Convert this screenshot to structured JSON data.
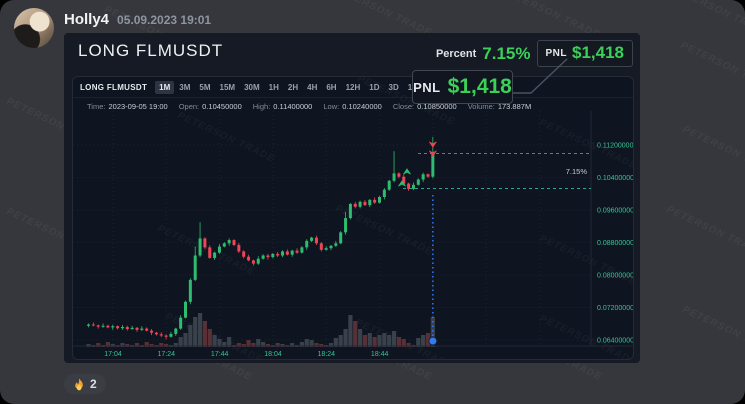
{
  "header": {
    "username": "Holly4",
    "timestamp": "05.09.2023 19:01"
  },
  "watermark": {
    "text": "PETERSON TRADE"
  },
  "embed": {
    "title": "LONG FLMUSDT",
    "percent_label": "Percent",
    "percent_value": "7.15%",
    "pnl_label": "PNL",
    "pnl_value": "$1,418",
    "callout": {
      "label": "PNL",
      "value": "$1,418"
    }
  },
  "toolbar": {
    "symbol": "LONG FLMUSDT",
    "timeframes": [
      "1M",
      "3M",
      "5M",
      "15M",
      "30M",
      "1H",
      "2H",
      "4H",
      "6H",
      "12H",
      "1D",
      "3D",
      "1W",
      "1M"
    ],
    "active_index": 0
  },
  "info": [
    {
      "label": "Time:",
      "value": "2023-09-05 19:00"
    },
    {
      "label": "Open:",
      "value": "0.10450000"
    },
    {
      "label": "High:",
      "value": "0.11400000"
    },
    {
      "label": "Low:",
      "value": "0.10240000"
    },
    {
      "label": "Close:",
      "value": "0.10850000"
    },
    {
      "label": "Volume:",
      "value": "173.887M"
    }
  ],
  "reaction": {
    "icon": "flame-icon",
    "count": "2"
  },
  "chart_data": {
    "type": "candlestick",
    "title": "LONG FLMUSDT 1M",
    "x_ticks": [
      "17:04",
      "17:24",
      "17:44",
      "18:04",
      "18:24",
      "18:44"
    ],
    "y_ticks": [
      "0.11200000",
      "0.10400000",
      "0.09600000",
      "0.08800000",
      "0.08000000",
      "0.07200000",
      "0.06400000"
    ],
    "y_range_top": 0.1199,
    "y_range_bottom": 0.0625,
    "grid": true,
    "price_unit": 0.0001,
    "open_first": 675,
    "closes": [
      678,
      676,
      673,
      675,
      671,
      674,
      669,
      672,
      667,
      670,
      665,
      668,
      663,
      658,
      654,
      651,
      648,
      655,
      668,
      695,
      734,
      788,
      848,
      890,
      868,
      842,
      855,
      870,
      878,
      886,
      874,
      858,
      845,
      836,
      828,
      840,
      848,
      844,
      852,
      848,
      858,
      850,
      860,
      855,
      868,
      884,
      892,
      878,
      862,
      866,
      872,
      878,
      905,
      940,
      975,
      968,
      980,
      972,
      985,
      978,
      992,
      1010,
      1032,
      1050,
      1042,
      1025,
      1012,
      1022,
      1035,
      1048,
      1042,
      1098
    ],
    "wick_up_pattern": [
      3,
      5,
      2,
      6,
      3,
      4,
      2,
      5
    ],
    "wick_up_overrides": {
      "22": 22,
      "23": 40,
      "53": 15,
      "63": 55,
      "71": 42
    },
    "wick_dn_pattern": [
      4,
      2,
      5,
      3,
      2,
      6,
      3,
      4
    ],
    "wick_dn_overrides": {
      "16": 6
    },
    "volume_pattern": [
      3,
      2,
      4,
      2,
      5,
      3,
      2,
      4
    ],
    "volume_overrides": {
      "19": 10,
      "20": 14,
      "21": 22,
      "22": 30,
      "23": 34,
      "24": 26,
      "25": 18,
      "26": 12,
      "27": 8,
      "29": 10,
      "33": 7,
      "35": 8,
      "45": 8,
      "46": 7,
      "51": 9,
      "52": 12,
      "53": 18,
      "54": 32,
      "55": 26,
      "56": 18,
      "57": 12,
      "58": 14,
      "59": 10,
      "60": 12,
      "61": 14,
      "62": 12,
      "63": 16,
      "64": 10,
      "65": 8,
      "68": 9,
      "69": 12,
      "70": 14,
      "71": 30
    },
    "entry_price": 0.1013,
    "exit_price": 0.1099,
    "percent_annotation": "7.15%",
    "markers": {
      "entry": "green-up-arrows",
      "exit": "red-down-arrows",
      "exit_point": "blue-dot"
    },
    "colors": {
      "up": "#2ebd70",
      "down": "#ef4556",
      "entry_line": "#2aa593",
      "exit_line": "#e8434f",
      "marker_blue": "#3179f5",
      "axis_text": "#36c593",
      "accent_green": "#3bd158",
      "vol_up": "#3c434e",
      "vol_down": "#5e3138"
    }
  }
}
